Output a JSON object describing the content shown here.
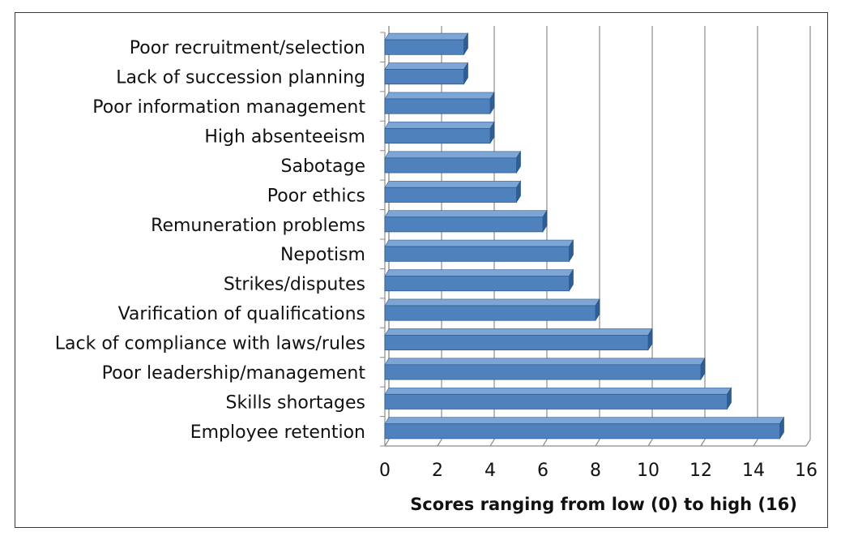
{
  "chart_data": {
    "type": "bar",
    "orientation": "horizontal",
    "categories": [
      "Poor recruitment/selection",
      "Lack of succession planning",
      "Poor information management",
      "High absenteeism",
      "Sabotage",
      "Poor ethics",
      "Remuneration problems",
      "Nepotism",
      "Strikes/disputes",
      "Varification of qualifications",
      "Lack of compliance with laws/rules",
      "Poor leadership/management",
      "Skills shortages",
      "Employee retention"
    ],
    "values": [
      3,
      3,
      4,
      4,
      5,
      5,
      6,
      7,
      7,
      8,
      10,
      12,
      13,
      15
    ],
    "xlim": [
      0,
      16
    ],
    "xticks": [
      "0",
      "2",
      "4",
      "6",
      "8",
      "10",
      "12",
      "14",
      "16"
    ],
    "xlabel": "Scores ranging from low (0) to high (16)",
    "ylabel": "",
    "title": "",
    "grid": "vertical",
    "bar_color": "#4f81bd",
    "bar_dark_color": "#2f5e95",
    "legend": "none"
  }
}
